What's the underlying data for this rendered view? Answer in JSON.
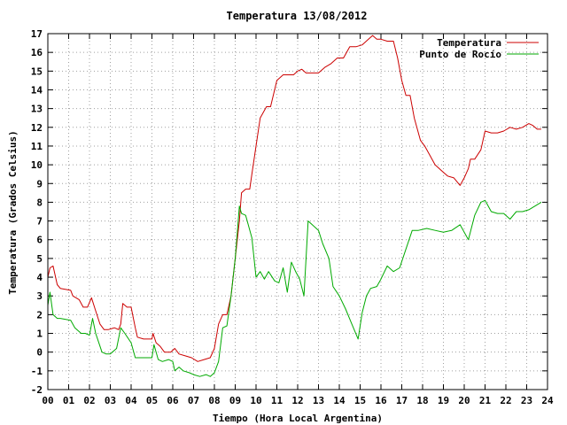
{
  "chart_data": {
    "type": "line",
    "title": "Temperatura 13/08/2012",
    "xlabel": "Tiempo (Hora Local Argentina)",
    "ylabel": "Temperatura (Grados Celsius)",
    "xlim": [
      0,
      24
    ],
    "ylim": [
      -2,
      17
    ],
    "x_ticks": [
      "00",
      "01",
      "02",
      "03",
      "04",
      "05",
      "06",
      "07",
      "08",
      "09",
      "10",
      "11",
      "12",
      "13",
      "14",
      "15",
      "16",
      "17",
      "18",
      "19",
      "20",
      "21",
      "22",
      "23",
      "24"
    ],
    "y_ticks": [
      "-2",
      "-1",
      "0",
      "1",
      "2",
      "3",
      "4",
      "5",
      "6",
      "7",
      "8",
      "9",
      "10",
      "11",
      "12",
      "13",
      "14",
      "15",
      "16",
      "17"
    ],
    "grid": true,
    "legend_position": "top-right",
    "colors": {
      "temperatura": "#cc0000",
      "punto_rocio": "#00aa00"
    },
    "series": [
      {
        "name": "Temperatura",
        "x": [
          0.0,
          0.1,
          0.25,
          0.45,
          0.6,
          1.1,
          1.2,
          1.5,
          1.7,
          1.9,
          2.1,
          2.3,
          2.5,
          2.7,
          2.9,
          3.2,
          3.4,
          3.5,
          3.6,
          3.8,
          4.0,
          4.2,
          4.3,
          4.6,
          5.0,
          5.05,
          5.2,
          5.4,
          5.6,
          5.9,
          6.1,
          6.3,
          6.6,
          6.9,
          7.2,
          7.5,
          7.8,
          8.0,
          8.2,
          8.4,
          8.6,
          8.8,
          9.0,
          9.2,
          9.3,
          9.5,
          9.7,
          9.8,
          10.0,
          10.2,
          10.5,
          10.7,
          11.0,
          11.3,
          11.6,
          11.8,
          12.0,
          12.2,
          12.4,
          12.7,
          13.0,
          13.3,
          13.6,
          13.9,
          14.2,
          14.5,
          14.8,
          15.1,
          15.4,
          15.6,
          15.8,
          16.0,
          16.3,
          16.6,
          16.8,
          17.0,
          17.2,
          17.4,
          17.6,
          17.9,
          18.1,
          18.3,
          18.6,
          18.9,
          19.2,
          19.5,
          19.8,
          20.0,
          20.2,
          20.3,
          20.5,
          20.8,
          21.0,
          21.3,
          21.6,
          21.9,
          22.2,
          22.5,
          22.8,
          23.1,
          23.3,
          23.5,
          23.7
        ],
        "y": [
          4.0,
          4.5,
          4.6,
          3.6,
          3.4,
          3.3,
          3.0,
          2.8,
          2.4,
          2.4,
          2.9,
          2.2,
          1.5,
          1.2,
          1.2,
          1.3,
          1.2,
          1.5,
          2.6,
          2.4,
          2.4,
          1.3,
          0.8,
          0.7,
          0.7,
          1.0,
          0.5,
          0.3,
          0.0,
          0.0,
          0.2,
          -0.1,
          -0.2,
          -0.3,
          -0.5,
          -0.4,
          -0.3,
          0.2,
          1.5,
          2.0,
          2.0,
          3.0,
          5.0,
          7.0,
          8.5,
          8.7,
          8.7,
          9.5,
          11.0,
          12.5,
          13.1,
          13.1,
          14.5,
          14.8,
          14.8,
          14.8,
          15.0,
          15.1,
          14.9,
          14.9,
          14.9,
          15.2,
          15.4,
          15.7,
          15.7,
          16.3,
          16.3,
          16.4,
          16.7,
          16.9,
          16.7,
          16.7,
          16.6,
          16.6,
          15.7,
          14.5,
          13.7,
          13.7,
          12.5,
          11.3,
          11.0,
          10.6,
          10.0,
          9.7,
          9.4,
          9.3,
          8.9,
          9.3,
          9.8,
          10.3,
          10.3,
          10.8,
          11.8,
          11.7,
          11.7,
          11.8,
          12.0,
          11.9,
          12.0,
          12.2,
          12.1,
          11.9,
          11.9
        ]
      },
      {
        "name": "Punto de Rocío",
        "x": [
          0.0,
          0.1,
          0.25,
          0.45,
          0.6,
          1.1,
          1.3,
          1.6,
          1.8,
          2.0,
          2.15,
          2.3,
          2.6,
          2.8,
          3.0,
          3.3,
          3.5,
          3.7,
          4.0,
          4.2,
          4.5,
          4.8,
          5.0,
          5.1,
          5.3,
          5.5,
          5.8,
          6.0,
          6.1,
          6.3,
          6.5,
          6.8,
          7.0,
          7.3,
          7.6,
          7.8,
          8.0,
          8.2,
          8.4,
          8.6,
          8.8,
          9.0,
          9.2,
          9.3,
          9.5,
          9.8,
          10.0,
          10.2,
          10.4,
          10.6,
          10.9,
          11.1,
          11.3,
          11.5,
          11.7,
          11.9,
          12.1,
          12.3,
          12.5,
          12.7,
          13.0,
          13.2,
          13.5,
          13.7,
          14.0,
          14.3,
          14.6,
          14.9,
          15.1,
          15.3,
          15.5,
          15.8,
          16.0,
          16.3,
          16.6,
          16.9,
          17.2,
          17.5,
          17.8,
          18.2,
          18.6,
          19.0,
          19.4,
          19.8,
          20.2,
          20.5,
          20.8,
          21.0,
          21.3,
          21.6,
          21.9,
          22.2,
          22.5,
          22.8,
          23.1,
          23.4,
          23.7
        ],
        "y": [
          2.5,
          3.2,
          2.0,
          1.8,
          1.8,
          1.7,
          1.3,
          1.0,
          1.0,
          0.9,
          1.8,
          1.0,
          0.0,
          -0.1,
          -0.1,
          0.2,
          1.3,
          1.0,
          0.5,
          -0.3,
          -0.3,
          -0.3,
          -0.3,
          0.4,
          -0.4,
          -0.5,
          -0.4,
          -0.5,
          -1.0,
          -0.8,
          -1.0,
          -1.1,
          -1.2,
          -1.3,
          -1.2,
          -1.3,
          -1.1,
          -0.5,
          1.3,
          1.4,
          3.0,
          5.0,
          7.8,
          7.4,
          7.3,
          6.1,
          4.0,
          4.3,
          3.9,
          4.3,
          3.8,
          3.7,
          4.5,
          3.2,
          4.8,
          4.3,
          3.9,
          3.0,
          7.0,
          6.8,
          6.5,
          5.8,
          5.0,
          3.5,
          3.0,
          2.3,
          1.5,
          0.7,
          2.1,
          3.0,
          3.4,
          3.5,
          3.9,
          4.6,
          4.3,
          4.5,
          5.5,
          6.5,
          6.5,
          6.6,
          6.5,
          6.4,
          6.5,
          6.8,
          6.0,
          7.3,
          8.0,
          8.1,
          7.5,
          7.4,
          7.4,
          7.1,
          7.5,
          7.5,
          7.6,
          7.8,
          8.0
        ]
      }
    ]
  }
}
